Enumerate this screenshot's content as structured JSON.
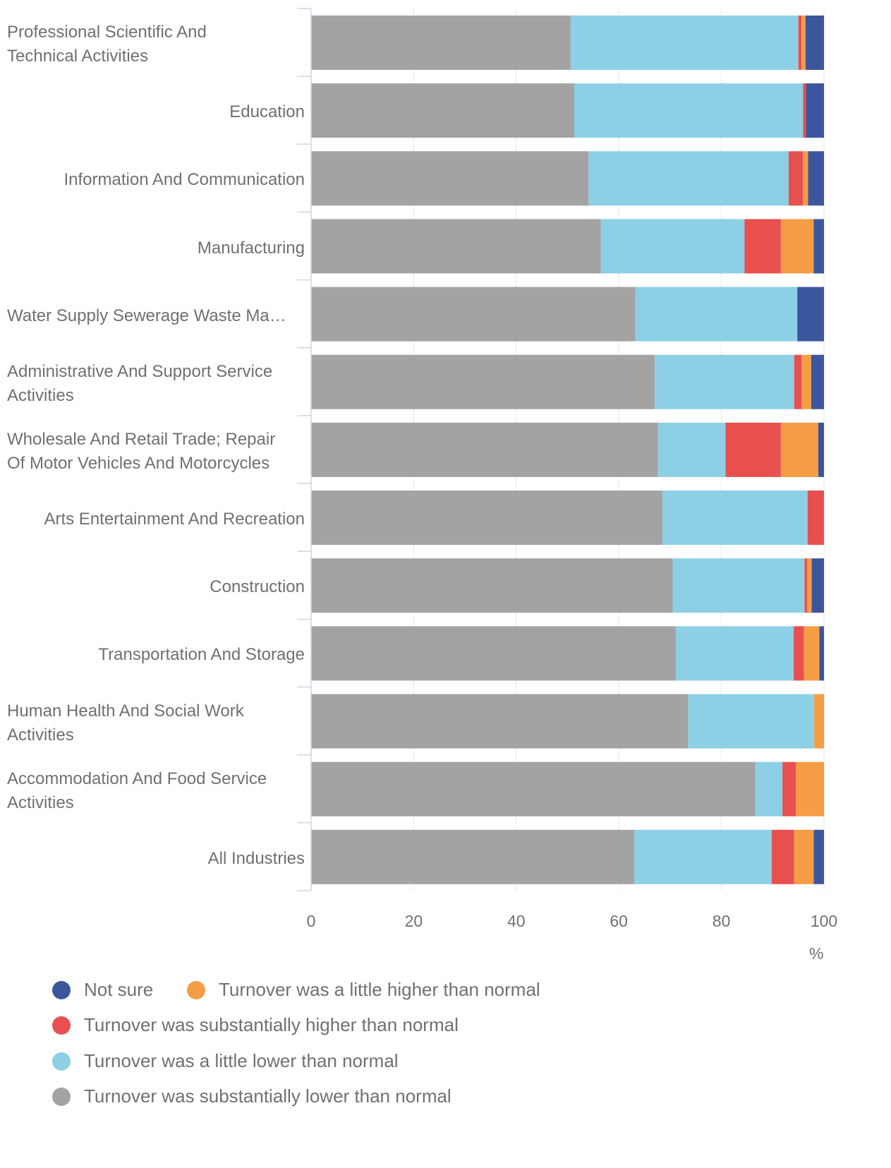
{
  "chart_data": {
    "type": "bar",
    "orientation": "horizontal",
    "stacked": true,
    "categories": [
      "Professional Scientific And\nTechnical Activities",
      "Education",
      "Information And Communication",
      "Manufacturing",
      "Water Supply Sewerage Waste Ma…",
      "Administrative And Support Service\nActivities",
      "Wholesale And Retail Trade; Repair\nOf Motor Vehicles And Motorcycles",
      "Arts Entertainment And Recreation",
      "Construction",
      "Transportation And Storage",
      "Human Health And Social Work\nActivities",
      "Accommodation And Food Service\nActivities",
      "All Industries"
    ],
    "series": [
      {
        "name": "Turnover was substantially lower than normal",
        "color": "#a3a3a3",
        "values": [
          50.6,
          51.3,
          54.1,
          56.5,
          63.2,
          67.0,
          67.6,
          68.5,
          70.5,
          71.1,
          73.5,
          86.6,
          63.0
        ]
      },
      {
        "name": "Turnover was a little lower than normal",
        "color": "#8dd0e6",
        "values": [
          44.4,
          44.6,
          39.0,
          28.0,
          31.6,
          27.2,
          13.2,
          28.3,
          25.7,
          23.0,
          24.6,
          5.3,
          26.8
        ]
      },
      {
        "name": "Turnover was substantially higher than normal",
        "color": "#e85050",
        "values": [
          0.6,
          0.6,
          2.8,
          7.1,
          0,
          1.4,
          10.8,
          3.2,
          0.5,
          2.0,
          0,
          2.6,
          4.4
        ]
      },
      {
        "name": "Turnover was a little higher than normal",
        "color": "#f59d45",
        "values": [
          0.8,
          0,
          1.0,
          6.4,
          0,
          1.9,
          7.3,
          0,
          0.9,
          3.0,
          1.9,
          5.5,
          3.8
        ]
      },
      {
        "name": "Not sure",
        "color": "#3c569e",
        "values": [
          3.6,
          3.5,
          3.1,
          2.0,
          5.2,
          2.5,
          1.1,
          0,
          2.4,
          0.9,
          0,
          0,
          2.0
        ]
      }
    ],
    "xlim": [
      0,
      100
    ],
    "xticks": [
      "0",
      "20",
      "40",
      "60",
      "80",
      "100"
    ],
    "x_unit": "%",
    "grid": true,
    "legend_position": "bottom-left",
    "legend": [
      {
        "label": "Not sure",
        "color": "#3c569e"
      },
      {
        "label": "Turnover was a little higher than normal",
        "color": "#f59d45"
      },
      {
        "label": "Turnover was substantially higher than normal",
        "color": "#e85050"
      },
      {
        "label": "Turnover was a little lower than normal",
        "color": "#8dd0e6"
      },
      {
        "label": "Turnover was substantially lower than normal",
        "color": "#a3a3a3"
      }
    ]
  }
}
